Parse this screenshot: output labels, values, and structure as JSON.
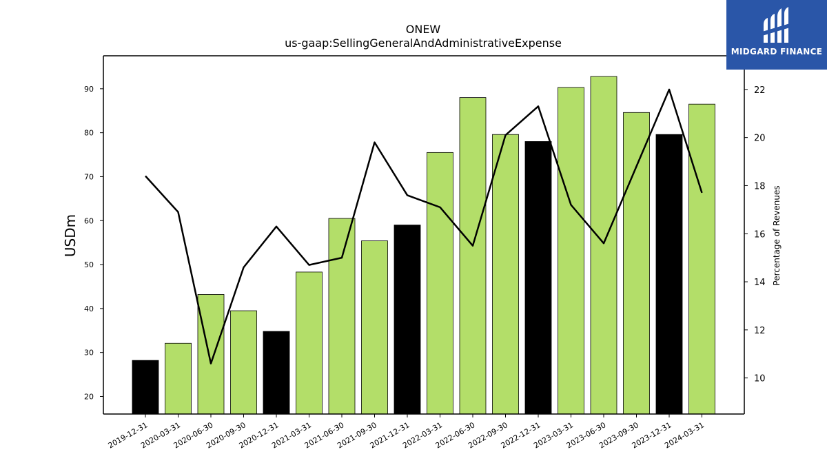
{
  "chart_data": {
    "type": "bar",
    "title": "ONEW",
    "subtitle": "us-gaap:SellingGeneralAndAdministrativeExpense",
    "ylabel": "USDm",
    "y2label": "Percentage of Revenues",
    "categories": [
      "2019-12-31",
      "2020-03-31",
      "2020-06-30",
      "2020-09-30",
      "2020-12-31",
      "2021-03-31",
      "2021-06-30",
      "2021-09-30",
      "2021-12-31",
      "2022-03-31",
      "2022-06-30",
      "2022-09-30",
      "2022-12-31",
      "2023-03-31",
      "2023-06-30",
      "2023-09-30",
      "2023-12-31",
      "2024-03-31"
    ],
    "series": [
      {
        "values": [
          28.2,
          32.1,
          43.2,
          39.5,
          34.8,
          48.3,
          60.5,
          55.4,
          59.0,
          75.5,
          88.0,
          79.6,
          78.0,
          90.3,
          92.8,
          84.6,
          79.6,
          86.5
        ],
        "bar_colors": [
          "#000000",
          "#b3de69",
          "#b3de69",
          "#b3de69",
          "#000000",
          "#b3de69",
          "#b3de69",
          "#b3de69",
          "#000000",
          "#b3de69",
          "#b3de69",
          "#b3de69",
          "#000000",
          "#b3de69",
          "#b3de69",
          "#b3de69",
          "#000000",
          "#b3de69"
        ]
      },
      {
        "type": "line",
        "axis": "right",
        "values": [
          18.4,
          16.9,
          10.6,
          14.6,
          16.3,
          14.7,
          15.0,
          19.8,
          17.6,
          17.1,
          15.5,
          20.1,
          21.3,
          17.2,
          15.6,
          18.8,
          22.0,
          17.7
        ]
      }
    ],
    "ylim": [
      16,
      97.5
    ],
    "y2lim": [
      8.5,
      23.4
    ],
    "yticks": [
      20,
      30,
      40,
      50,
      60,
      70,
      80,
      90
    ],
    "y2ticks": [
      10,
      12,
      14,
      16,
      18,
      20,
      22
    ],
    "grid": false,
    "colors": {
      "bar_annual": "#000000",
      "bar_quarter": "#b3de69",
      "line": "#000000"
    }
  },
  "logo": {
    "text": "MIDGARD FINANCE",
    "bg": "#2a56a8"
  }
}
